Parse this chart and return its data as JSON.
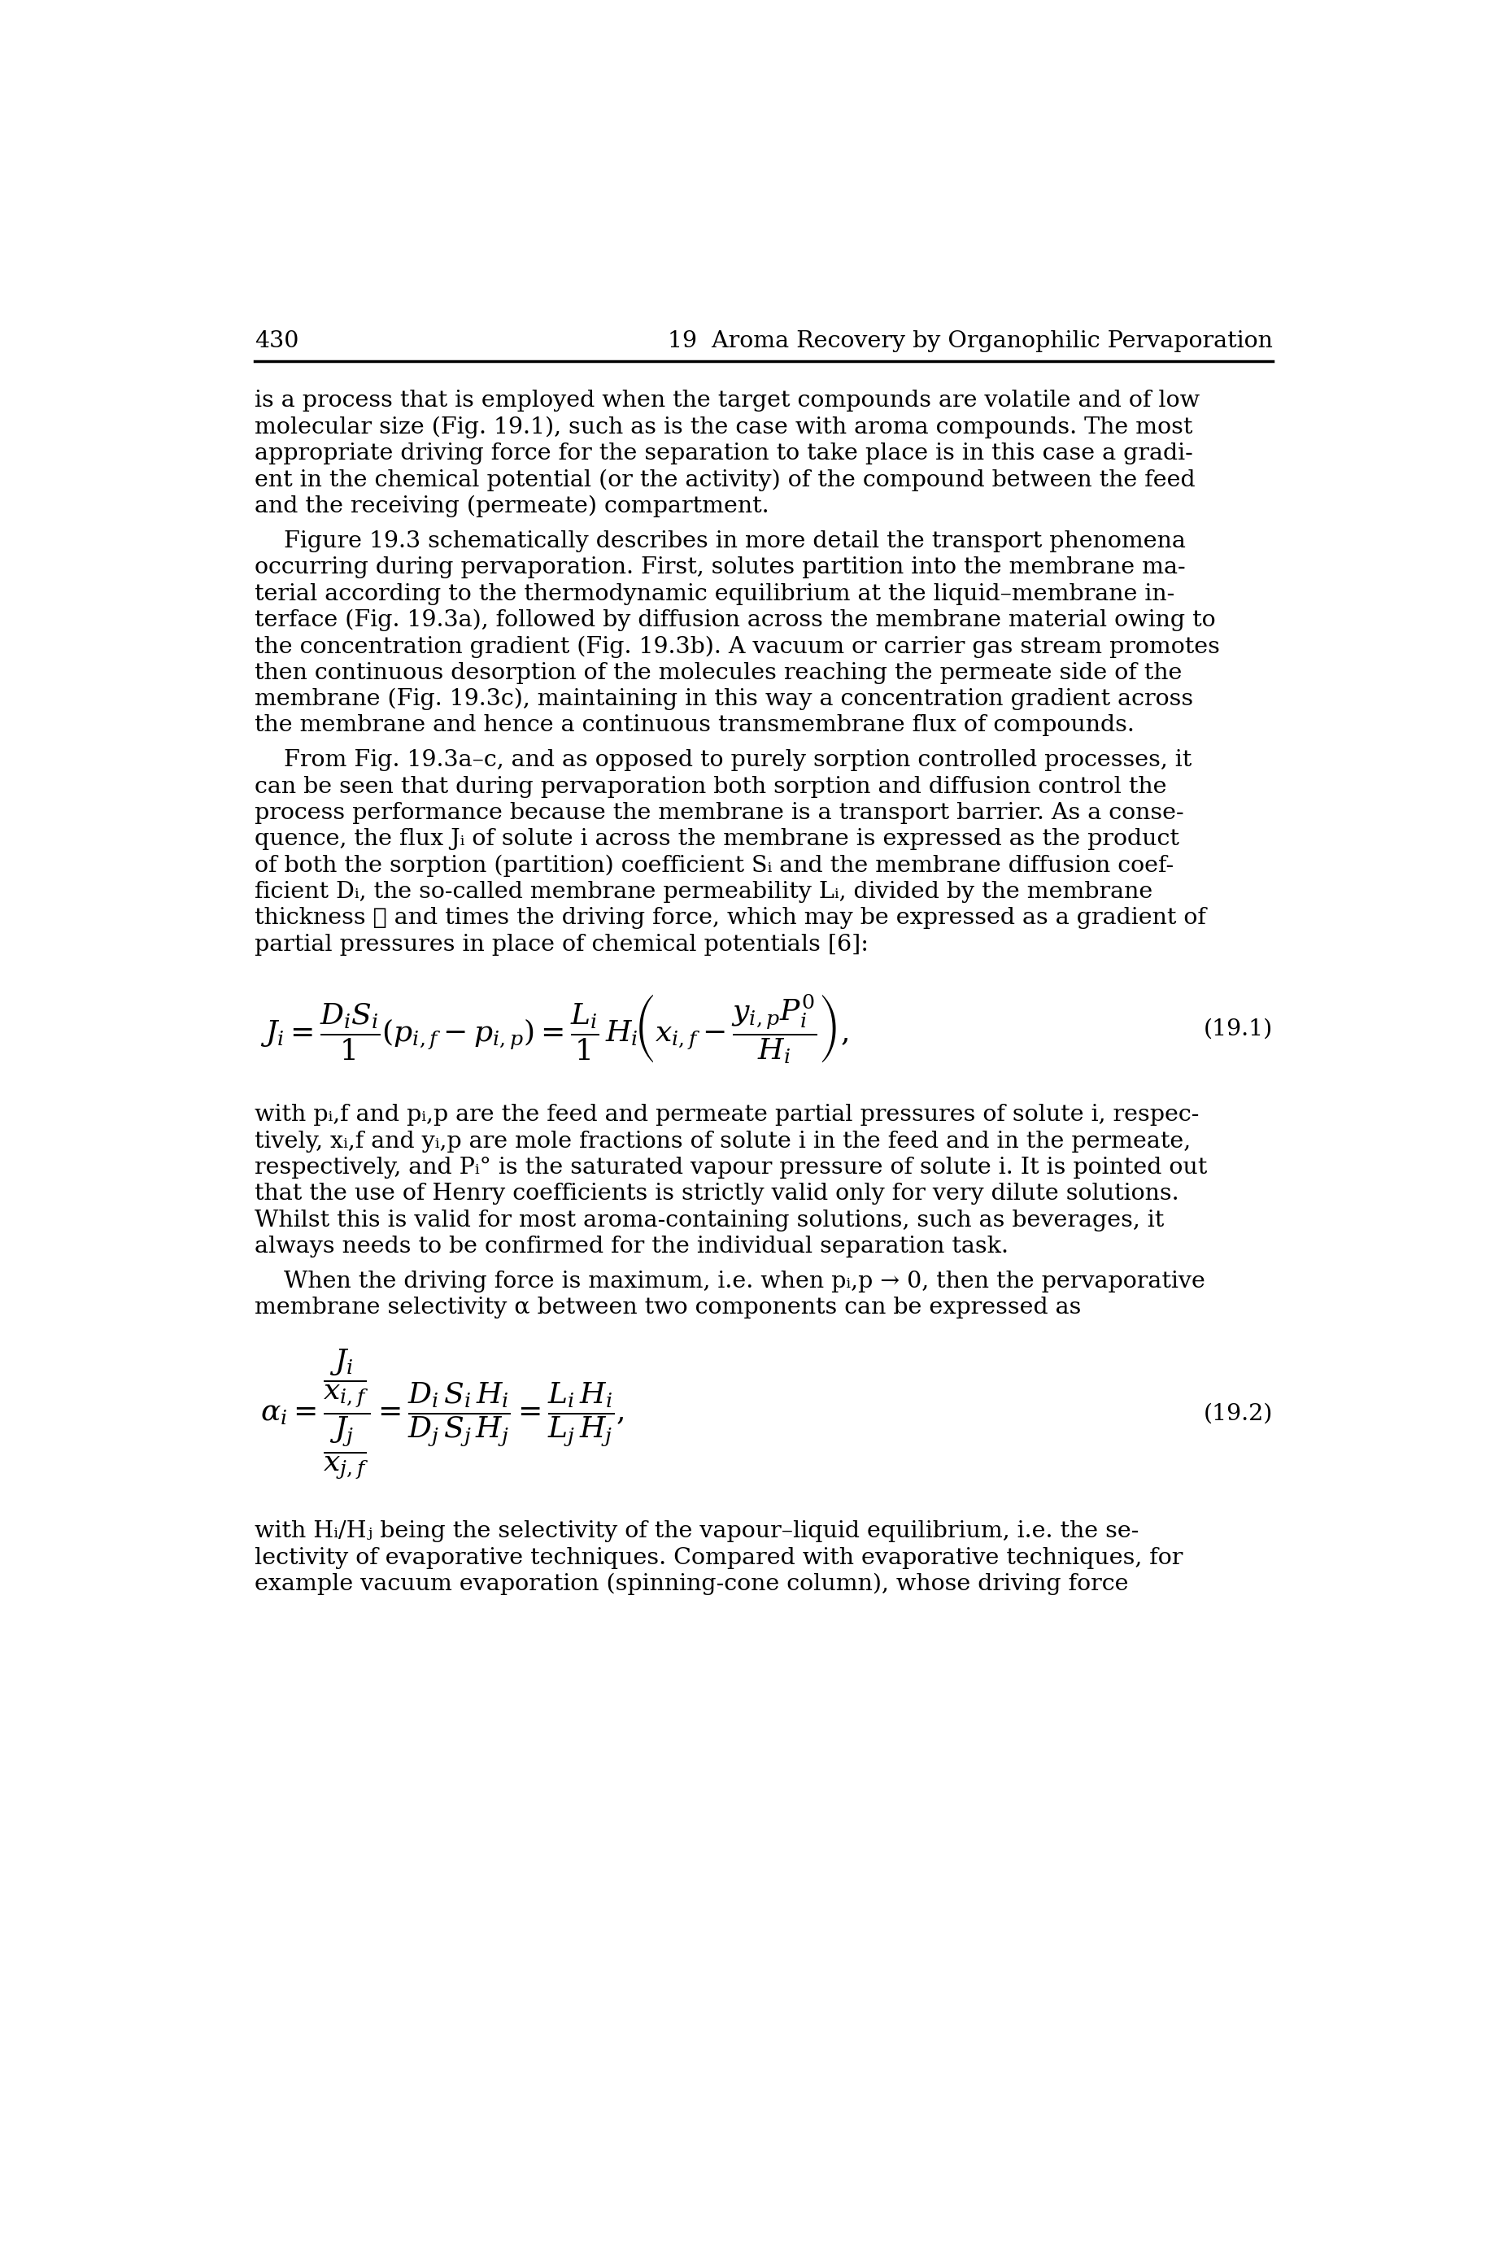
{
  "page_number": "430",
  "chapter_header": "19  Aroma Recovery by Organophilic Pervaporation",
  "background_color": "#ffffff",
  "text_color": "#000000",
  "lines_para1": [
    "is a process that is employed when the target compounds are volatile and of low",
    "molecular size (Fig. 19.1), such as is the case with aroma compounds. The most",
    "appropriate driving force for the separation to take place is in this case a gradi-",
    "ent in the chemical potential (or the activity) of the compound between the feed",
    "and the receiving (permeate) compartment."
  ],
  "lines_para2": [
    "    Figure 19.3 schematically describes in more detail the transport phenomena",
    "occurring during pervaporation. First, solutes partition into the membrane ma-",
    "terial according to the thermodynamic equilibrium at the liquid–membrane in-",
    "terface (Fig. 19.3a), followed by diffusion across the membrane material owing to",
    "the concentration gradient (Fig. 19.3b). A vacuum or carrier gas stream promotes",
    "then continuous desorption of the molecules reaching the permeate side of the",
    "membrane (Fig. 19.3c), maintaining in this way a concentration gradient across",
    "the membrane and hence a continuous transmembrane flux of compounds."
  ],
  "lines_para3": [
    "    From Fig. 19.3a–c, and as opposed to purely sorption controlled processes, it",
    "can be seen that during pervaporation both sorption and diffusion control the",
    "process performance because the membrane is a transport barrier. As a conse-",
    "quence, the flux Jᵢ of solute i across the membrane is expressed as the product",
    "of both the sorption (partition) coefficient Sᵢ and the membrane diffusion coef-",
    "ficient Dᵢ, the so-called membrane permeability Lᵢ, divided by the membrane",
    "thickness ℓ and times the driving force, which may be expressed as a gradient of",
    "partial pressures in place of chemical potentials [6]:"
  ],
  "eq1_label": "(19.1)",
  "eq2_label": "(19.2)",
  "lines_para4": [
    "with pᵢ,f and pᵢ,p are the feed and permeate partial pressures of solute i, respec-",
    "tively, xᵢ,f and yᵢ,p are mole fractions of solute i in the feed and in the permeate,",
    "respectively, and Pᵢ° is the saturated vapour pressure of solute i. It is pointed out",
    "that the use of Henry coefficients is strictly valid only for very dilute solutions.",
    "Whilst this is valid for most aroma-containing solutions, such as beverages, it",
    "always needs to be confirmed for the individual separation task."
  ],
  "lines_para5": [
    "    When the driving force is maximum, i.e. when pᵢ,p → 0, then the pervaporative",
    "membrane selectivity α between two components can be expressed as"
  ],
  "lines_para6": [
    "with Hᵢ/Hⱼ being the selectivity of the vapour–liquid equilibrium, i.e. the se-",
    "lectivity of evaporative techniques. Compared with evaporative techniques, for",
    "example vacuum evaporation (spinning-cone column), whose driving force"
  ]
}
